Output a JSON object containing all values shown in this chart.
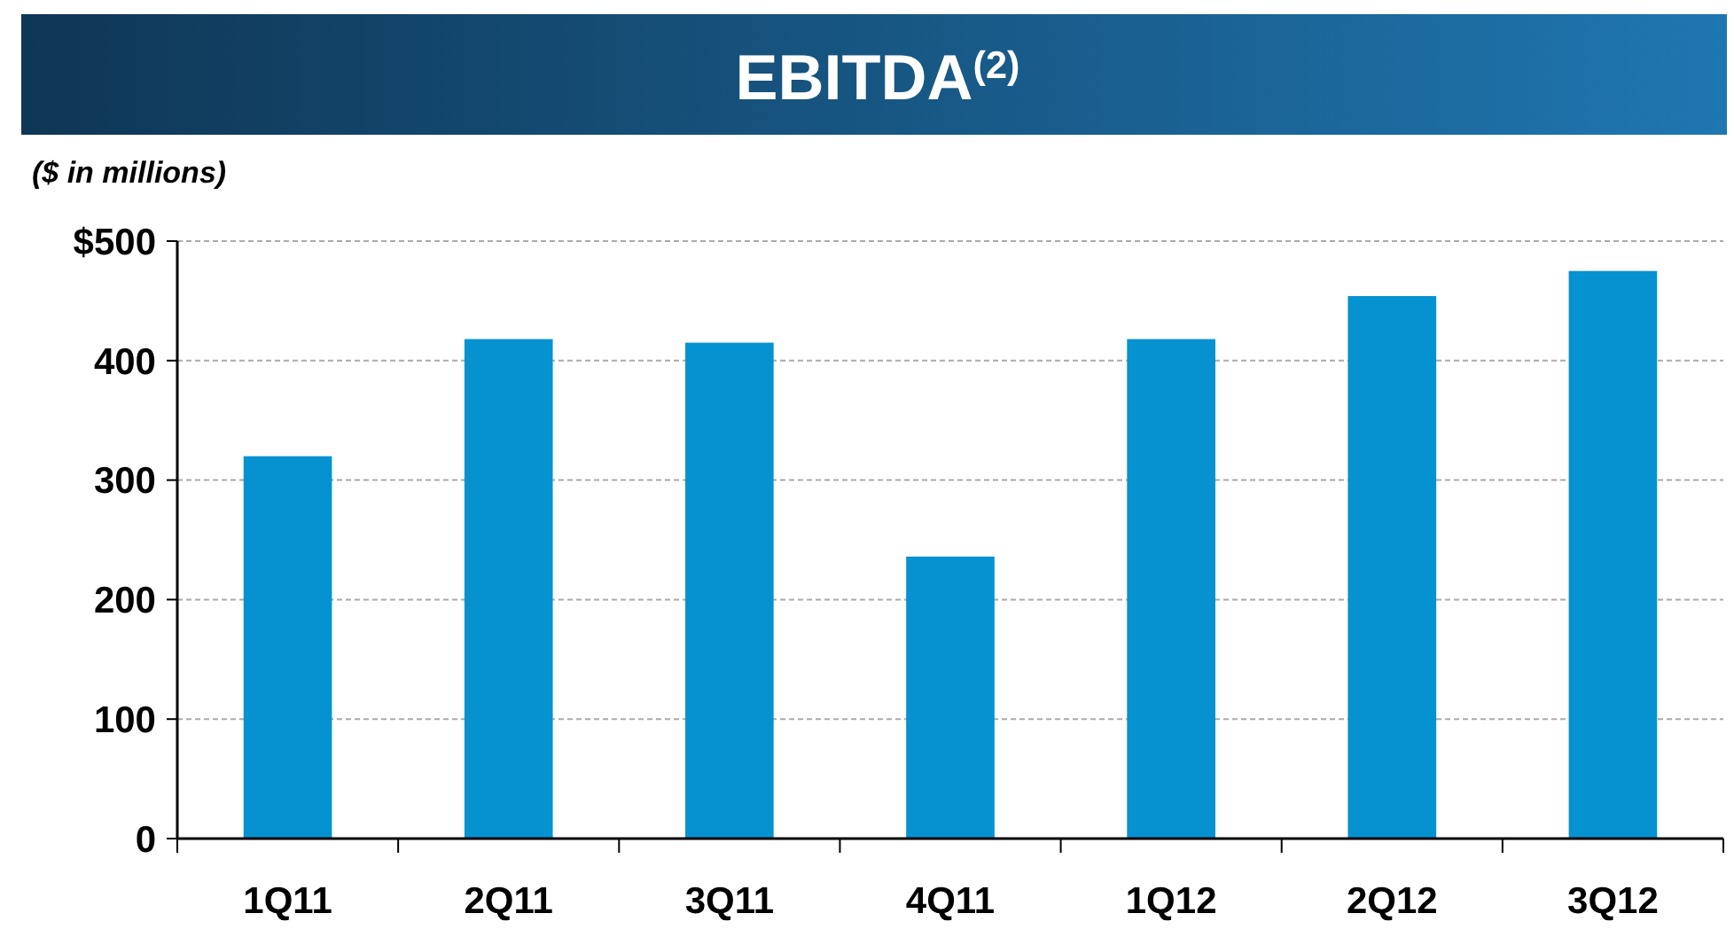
{
  "chart_data": {
    "type": "bar",
    "title": "EBITDA$^{(2)}$",
    "subtitle": "($ in millions)",
    "categories": [
      "1Q11",
      "2Q11",
      "3Q11",
      "4Q11",
      "1Q12",
      "2Q12",
      "3Q12"
    ],
    "values": [
      320,
      418,
      415,
      236,
      418,
      454,
      475
    ],
    "color": "#0692d0",
    "ylim": [
      0,
      500
    ],
    "yticks": [
      0,
      100,
      200,
      300,
      400,
      {
        "value": 500,
        "label": "$500"
      }
    ],
    "grid": "y"
  }
}
